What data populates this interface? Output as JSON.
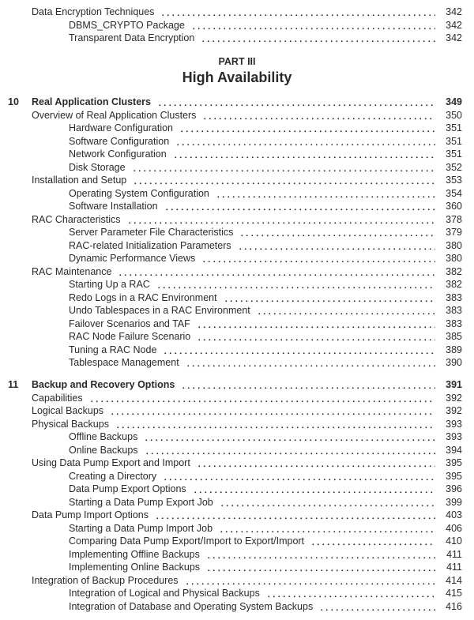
{
  "top_entries": [
    {
      "level": 1,
      "title": "Data Encryption Techniques",
      "page": "342"
    },
    {
      "level": 2,
      "title": "DBMS_CRYPTO Package",
      "page": "342"
    },
    {
      "level": 2,
      "title": "Transparent Data Encryption",
      "page": "342"
    }
  ],
  "part": {
    "label": "PART III",
    "title": "High Availability"
  },
  "chapters": [
    {
      "number": "10",
      "entries": [
        {
          "level": 0,
          "title": "Real Application Clusters",
          "page": "349"
        },
        {
          "level": 1,
          "title": "Overview of Real Application Clusters",
          "page": "350"
        },
        {
          "level": 2,
          "title": "Hardware Configuration",
          "page": "351"
        },
        {
          "level": 2,
          "title": "Software Configuration",
          "page": "351"
        },
        {
          "level": 2,
          "title": "Network Configuration",
          "page": "351"
        },
        {
          "level": 2,
          "title": "Disk Storage",
          "page": "352"
        },
        {
          "level": 1,
          "title": "Installation and Setup",
          "page": "353"
        },
        {
          "level": 2,
          "title": "Operating System Configuration",
          "page": "354"
        },
        {
          "level": 2,
          "title": "Software Installation",
          "page": "360"
        },
        {
          "level": 1,
          "title": "RAC Characteristics",
          "page": "378"
        },
        {
          "level": 2,
          "title": "Server Parameter File Characteristics",
          "page": "379"
        },
        {
          "level": 2,
          "title": "RAC-related Initialization Parameters",
          "page": "380"
        },
        {
          "level": 2,
          "title": "Dynamic Performance Views",
          "page": "380"
        },
        {
          "level": 1,
          "title": "RAC Maintenance",
          "page": "382"
        },
        {
          "level": 2,
          "title": "Starting Up a RAC",
          "page": "382"
        },
        {
          "level": 2,
          "title": "Redo Logs in a RAC Environment",
          "page": "383"
        },
        {
          "level": 2,
          "title": "Undo Tablespaces in a RAC Environment",
          "page": "383"
        },
        {
          "level": 2,
          "title": "Failover Scenarios and TAF",
          "page": "383"
        },
        {
          "level": 2,
          "title": "RAC Node Failure Scenario",
          "page": "385"
        },
        {
          "level": 2,
          "title": "Tuning a RAC Node",
          "page": "389"
        },
        {
          "level": 2,
          "title": "Tablespace Management",
          "page": "390"
        }
      ]
    },
    {
      "number": "11",
      "entries": [
        {
          "level": 0,
          "title": "Backup and Recovery Options",
          "page": "391"
        },
        {
          "level": 1,
          "title": "Capabilities",
          "page": "392"
        },
        {
          "level": 1,
          "title": "Logical Backups",
          "page": "392"
        },
        {
          "level": 1,
          "title": "Physical Backups",
          "page": "393"
        },
        {
          "level": 2,
          "title": "Offline Backups",
          "page": "393"
        },
        {
          "level": 2,
          "title": "Online Backups",
          "page": "394"
        },
        {
          "level": 1,
          "title": "Using Data Pump Export and Import",
          "page": "395"
        },
        {
          "level": 2,
          "title": "Creating a Directory",
          "page": "395"
        },
        {
          "level": 2,
          "title": "Data Pump Export Options",
          "page": "396"
        },
        {
          "level": 2,
          "title": "Starting a Data Pump Export Job",
          "page": "399"
        },
        {
          "level": 1,
          "title": "Data Pump Import Options",
          "page": "403"
        },
        {
          "level": 2,
          "title": "Starting a Data Pump Import Job",
          "page": "406"
        },
        {
          "level": 2,
          "title": "Comparing Data Pump Export/Import to Export/Import",
          "page": "410"
        },
        {
          "level": 2,
          "title": "Implementing Offline Backups",
          "page": "411"
        },
        {
          "level": 2,
          "title": "Implementing Online Backups",
          "page": "411"
        },
        {
          "level": 1,
          "title": "Integration of Backup Procedures",
          "page": "414"
        },
        {
          "level": 2,
          "title": "Integration of Logical and Physical Backups",
          "page": "415"
        },
        {
          "level": 2,
          "title": "Integration of Database and Operating System Backups",
          "page": "416"
        }
      ]
    }
  ]
}
